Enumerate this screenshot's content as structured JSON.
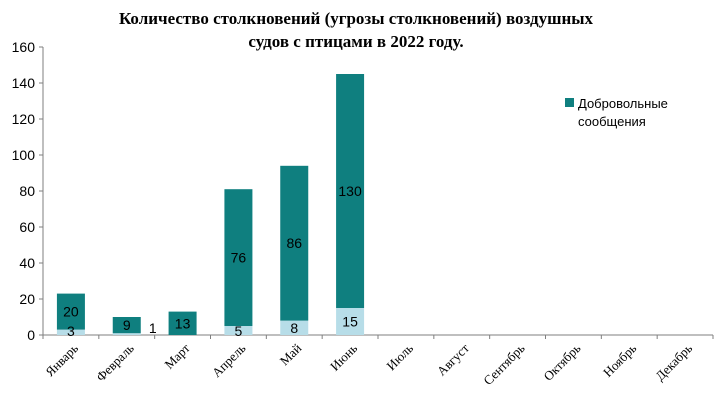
{
  "chart_data": {
    "type": "bar",
    "stacked": true,
    "title_lines": [
      "Количество столкновений (угрозы столкновений) воздушных",
      "судов с птицами в 2022 году."
    ],
    "categories": [
      "Январь",
      "Февраль",
      "Март",
      "Апрель",
      "Май",
      "Июнь",
      "Июль",
      "Август",
      "Сентябрь",
      "Октябрь",
      "Ноябрь",
      "Декабрь"
    ],
    "series": [
      {
        "values": [
          3,
          1,
          0,
          5,
          8,
          15,
          null,
          null,
          null,
          null,
          null,
          null
        ],
        "labels": [
          "3",
          "1",
          "",
          "5",
          "8",
          "15",
          "",
          "",
          "",
          "",
          "",
          ""
        ],
        "color": "#b7dde8"
      },
      {
        "name": "Добровольные сообщения",
        "values": [
          20,
          9,
          13,
          76,
          86,
          130,
          null,
          null,
          null,
          null,
          null,
          null
        ],
        "labels": [
          "20",
          "9",
          "13",
          "76",
          "86",
          "130",
          "",
          "",
          "",
          "",
          "",
          ""
        ],
        "color": "#0f7f7f"
      }
    ],
    "legend": {
      "lines": [
        "Добровольные",
        "сообщения"
      ],
      "placement": "right"
    },
    "ylim": [
      0,
      160
    ],
    "yticks": [
      0,
      20,
      40,
      60,
      80,
      100,
      120,
      140,
      160
    ],
    "grid": false
  }
}
